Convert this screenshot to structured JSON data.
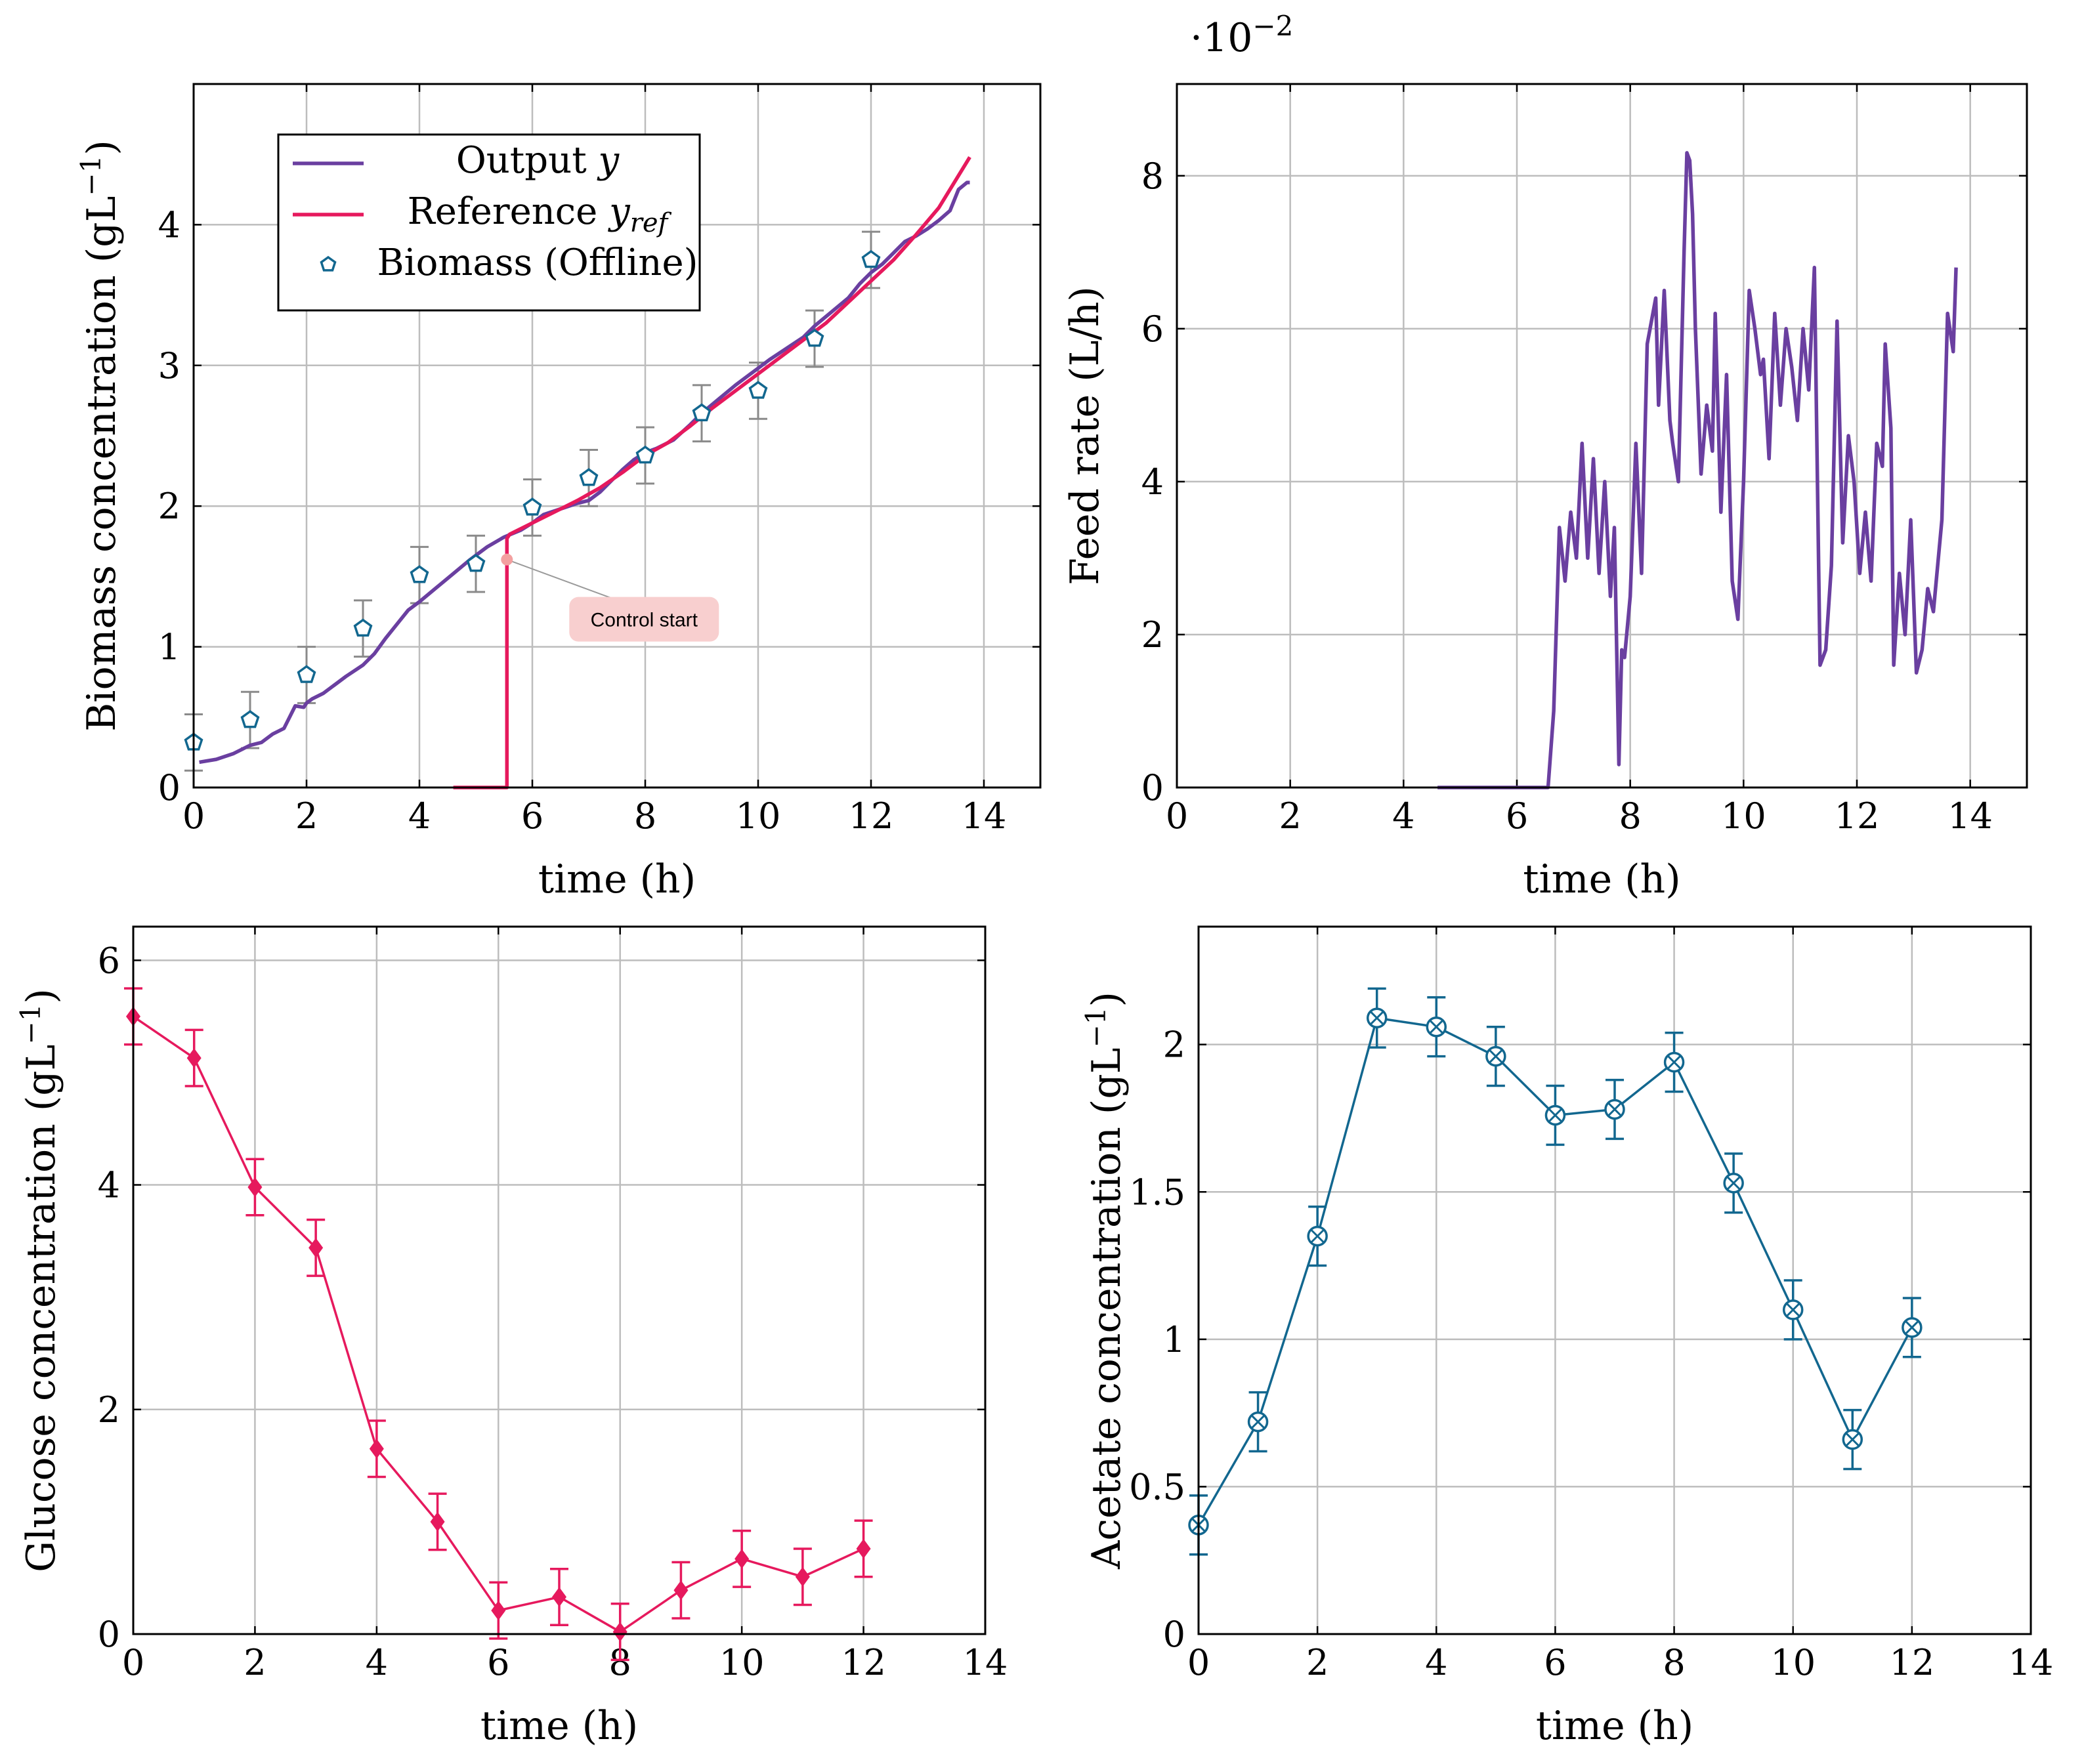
{
  "colors": {
    "purple": "#6a3fa0",
    "pink": "#e6195d",
    "teal": "#12678f",
    "grid": "#bdbdbd",
    "errorbar": "#8a8a8a",
    "callout_bg": "#f8cfcf",
    "callout_dot": "#f3a0a0"
  },
  "chart_data": [
    {
      "id": "biomass",
      "type": "line",
      "xlabel": "time (h)",
      "ylabel": "Biomass concentration (gL",
      "ylabel_sup": "−1",
      "xlim": [
        0,
        15
      ],
      "ylim": [
        0,
        5
      ],
      "xticks": [
        0,
        2,
        4,
        6,
        8,
        10,
        12,
        14
      ],
      "yticks": [
        0,
        1,
        2,
        3,
        4
      ],
      "legend": {
        "position": "top-left",
        "items": [
          {
            "label": "Output ",
            "var": "y",
            "sub": ""
          },
          {
            "label": "Reference ",
            "var": "y",
            "sub": "ref"
          },
          {
            "label": "Biomass (Offline)",
            "var": "",
            "sub": ""
          }
        ]
      },
      "annotation": {
        "text": "Control start",
        "x": 5.55,
        "y": 1.62
      },
      "series": [
        {
          "name": "Output y",
          "color": "#6a3fa0",
          "x": [
            0.1,
            0.4,
            0.7,
            0.9,
            1.0,
            1.2,
            1.4,
            1.6,
            1.7,
            1.8,
            1.95,
            2.0,
            2.1,
            2.3,
            2.5,
            2.7,
            3.0,
            3.2,
            3.4,
            3.6,
            3.8,
            4.0,
            4.3,
            4.6,
            4.9,
            5.2,
            5.5,
            5.8,
            6.0,
            6.2,
            6.5,
            6.8,
            7.0,
            7.2,
            7.4,
            7.6,
            7.8,
            8.0,
            8.2,
            8.5,
            8.8,
            9.0,
            9.3,
            9.6,
            9.9,
            10.2,
            10.5,
            10.8,
            11.0,
            11.3,
            11.6,
            11.8,
            12.0,
            12.2,
            12.4,
            12.6,
            12.8,
            13.0,
            13.2,
            13.4,
            13.55,
            13.7,
            13.75
          ],
          "y": [
            0.18,
            0.2,
            0.24,
            0.28,
            0.3,
            0.32,
            0.38,
            0.42,
            0.5,
            0.58,
            0.57,
            0.6,
            0.63,
            0.67,
            0.73,
            0.79,
            0.87,
            0.95,
            1.06,
            1.16,
            1.26,
            1.32,
            1.42,
            1.52,
            1.62,
            1.71,
            1.78,
            1.83,
            1.88,
            1.94,
            1.98,
            2.02,
            2.04,
            2.1,
            2.18,
            2.26,
            2.33,
            2.38,
            2.41,
            2.47,
            2.58,
            2.66,
            2.76,
            2.86,
            2.95,
            3.04,
            3.12,
            3.2,
            3.28,
            3.38,
            3.48,
            3.58,
            3.66,
            3.72,
            3.8,
            3.88,
            3.92,
            3.97,
            4.03,
            4.1,
            4.25,
            4.3,
            4.3
          ]
        },
        {
          "name": "Reference y_ref",
          "color": "#e6195d",
          "x": [
            4.6,
            5.55,
            5.55,
            5.6,
            6.0,
            6.4,
            6.8,
            7.2,
            7.6,
            8.0,
            8.4,
            8.8,
            9.2,
            9.6,
            10.0,
            10.4,
            10.8,
            11.2,
            11.6,
            12.0,
            12.4,
            12.8,
            13.2,
            13.75
          ],
          "y": [
            0,
            0,
            1.77,
            1.8,
            1.88,
            1.96,
            2.04,
            2.13,
            2.24,
            2.36,
            2.45,
            2.57,
            2.7,
            2.82,
            2.94,
            3.06,
            3.18,
            3.3,
            3.45,
            3.6,
            3.75,
            3.93,
            4.12,
            4.48
          ]
        }
      ],
      "markers": {
        "name": "Biomass (Offline)",
        "color": "#12678f",
        "x": [
          0,
          1,
          2,
          3,
          4,
          5,
          6,
          7,
          8,
          9,
          10,
          11,
          12
        ],
        "y": [
          0.32,
          0.48,
          0.8,
          1.13,
          1.51,
          1.59,
          1.99,
          2.2,
          2.36,
          2.66,
          2.82,
          3.19,
          3.75
        ],
        "err": [
          0.2,
          0.2,
          0.2,
          0.2,
          0.2,
          0.2,
          0.2,
          0.2,
          0.2,
          0.2,
          0.2,
          0.2,
          0.2
        ]
      }
    },
    {
      "id": "feed",
      "type": "line",
      "xlabel": "time (h)",
      "ylabel": "Feed rate (L/h)",
      "scale_label": "·10",
      "scale_exp": "−2",
      "xlim": [
        0,
        15
      ],
      "ylim": [
        0,
        9.2
      ],
      "xticks": [
        0,
        2,
        4,
        6,
        8,
        10,
        12,
        14
      ],
      "yticks": [
        0,
        2,
        4,
        6,
        8
      ],
      "series": [
        {
          "name": "Feed rate",
          "color": "#6a3fa0",
          "x": [
            4.6,
            5.5,
            6.2,
            6.55,
            6.65,
            6.75,
            6.85,
            6.95,
            7.05,
            7.15,
            7.25,
            7.35,
            7.45,
            7.55,
            7.65,
            7.72,
            7.8,
            7.85,
            7.9,
            8.0,
            8.1,
            8.2,
            8.3,
            8.35,
            8.45,
            8.5,
            8.6,
            8.7,
            8.75,
            8.85,
            8.95,
            9.0,
            9.05,
            9.1,
            9.15,
            9.25,
            9.35,
            9.45,
            9.5,
            9.6,
            9.7,
            9.8,
            9.9,
            10.0,
            10.1,
            10.2,
            10.3,
            10.35,
            10.45,
            10.55,
            10.65,
            10.75,
            10.85,
            10.95,
            11.05,
            11.15,
            11.25,
            11.35,
            11.45,
            11.55,
            11.65,
            11.75,
            11.85,
            11.95,
            12.05,
            12.15,
            12.25,
            12.35,
            12.45,
            12.5,
            12.6,
            12.65,
            12.75,
            12.85,
            12.95,
            13.05,
            13.15,
            13.25,
            13.35,
            13.5,
            13.6,
            13.7,
            13.75
          ],
          "y": [
            0,
            0,
            0,
            0,
            1.0,
            3.4,
            2.7,
            3.6,
            3.0,
            4.5,
            3.0,
            4.3,
            2.8,
            4.0,
            2.5,
            3.4,
            0.3,
            1.8,
            1.7,
            2.5,
            4.5,
            2.8,
            5.8,
            6.0,
            6.4,
            5.0,
            6.5,
            4.8,
            4.5,
            4.0,
            7.0,
            8.3,
            8.2,
            7.5,
            6.0,
            4.1,
            5.0,
            4.4,
            6.2,
            3.6,
            5.4,
            2.7,
            2.2,
            4.0,
            6.5,
            6.0,
            5.4,
            5.6,
            4.3,
            6.2,
            5.0,
            6.0,
            5.5,
            4.8,
            6.0,
            5.2,
            6.8,
            1.6,
            1.8,
            2.9,
            6.1,
            3.2,
            4.6,
            4.0,
            2.8,
            3.6,
            2.7,
            4.5,
            4.2,
            5.8,
            4.7,
            1.6,
            2.8,
            2.0,
            3.5,
            1.5,
            1.8,
            2.6,
            2.3,
            3.5,
            6.2,
            5.7,
            6.8
          ]
        }
      ]
    },
    {
      "id": "glucose",
      "type": "line",
      "xlabel": "time (h)",
      "ylabel": "Glucose concentration (gL",
      "ylabel_sup": "−1",
      "xlim": [
        0,
        14
      ],
      "ylim": [
        0,
        6.3
      ],
      "xticks": [
        0,
        2,
        4,
        6,
        8,
        10,
        12,
        14
      ],
      "yticks": [
        0,
        2,
        4,
        6
      ],
      "series": [
        {
          "name": "Glucose",
          "color": "#e6195d",
          "marker": "diamond",
          "x": [
            0,
            1,
            2,
            3,
            4,
            5,
            6,
            7,
            8,
            9,
            10,
            11,
            12
          ],
          "y": [
            5.5,
            5.13,
            3.98,
            3.44,
            1.65,
            1.0,
            0.21,
            0.33,
            0.02,
            0.39,
            0.67,
            0.51,
            0.76
          ],
          "err": [
            0.25,
            0.25,
            0.25,
            0.25,
            0.25,
            0.25,
            0.25,
            0.25,
            0.25,
            0.25,
            0.25,
            0.25,
            0.25
          ]
        }
      ]
    },
    {
      "id": "acetate",
      "type": "line",
      "xlabel": "time (h)",
      "ylabel": "Acetate concentration (gL",
      "ylabel_sup": "−1",
      "xlim": [
        0,
        14
      ],
      "ylim": [
        0,
        2.4
      ],
      "xticks": [
        0,
        2,
        4,
        6,
        8,
        10,
        12,
        14
      ],
      "yticks": [
        0,
        0.5,
        1,
        1.5,
        2
      ],
      "ytick_labels": [
        "0",
        "0.5",
        "1",
        "1.5",
        "2"
      ],
      "series": [
        {
          "name": "Acetate",
          "color": "#12678f",
          "marker": "circle-cross",
          "x": [
            0,
            1,
            2,
            3,
            4,
            5,
            6,
            7,
            8,
            9,
            10,
            11,
            12
          ],
          "y": [
            0.37,
            0.72,
            1.35,
            2.09,
            2.06,
            1.96,
            1.76,
            1.78,
            1.94,
            1.53,
            1.1,
            0.66,
            1.04
          ],
          "err": [
            0.1,
            0.1,
            0.1,
            0.1,
            0.1,
            0.1,
            0.1,
            0.1,
            0.1,
            0.1,
            0.1,
            0.1,
            0.1
          ]
        }
      ]
    }
  ]
}
